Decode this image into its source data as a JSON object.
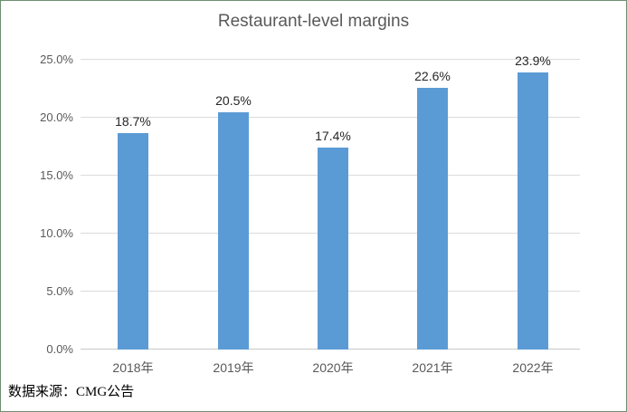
{
  "source_note": "数据来源：CMG公告",
  "chart_data": {
    "type": "bar",
    "title": "Restaurant-level margins",
    "categories": [
      "2018年",
      "2019年",
      "2020年",
      "2021年",
      "2022年"
    ],
    "values": [
      18.7,
      20.5,
      17.4,
      22.6,
      23.9
    ],
    "data_labels": [
      "18.7%",
      "20.5%",
      "17.4%",
      "22.6%",
      "23.9%"
    ],
    "xlabel": "",
    "ylabel": "",
    "ylim": [
      0,
      25
    ],
    "ytick_step": 5,
    "yticks": [
      0,
      5,
      10,
      15,
      20,
      25
    ],
    "ytick_labels": [
      "0.0%",
      "5.0%",
      "10.0%",
      "15.0%",
      "20.0%",
      "25.0%"
    ],
    "grid": true,
    "legend": false,
    "colors": {
      "bar": "#5b9bd5",
      "gridline": "#dcdcdc",
      "axis_line": "#c8c8c8",
      "axis_text": "#595959",
      "title_text": "#595959",
      "data_label_text": "#262626",
      "figure_border": "#6b8f6f",
      "background": "#ffffff"
    }
  }
}
